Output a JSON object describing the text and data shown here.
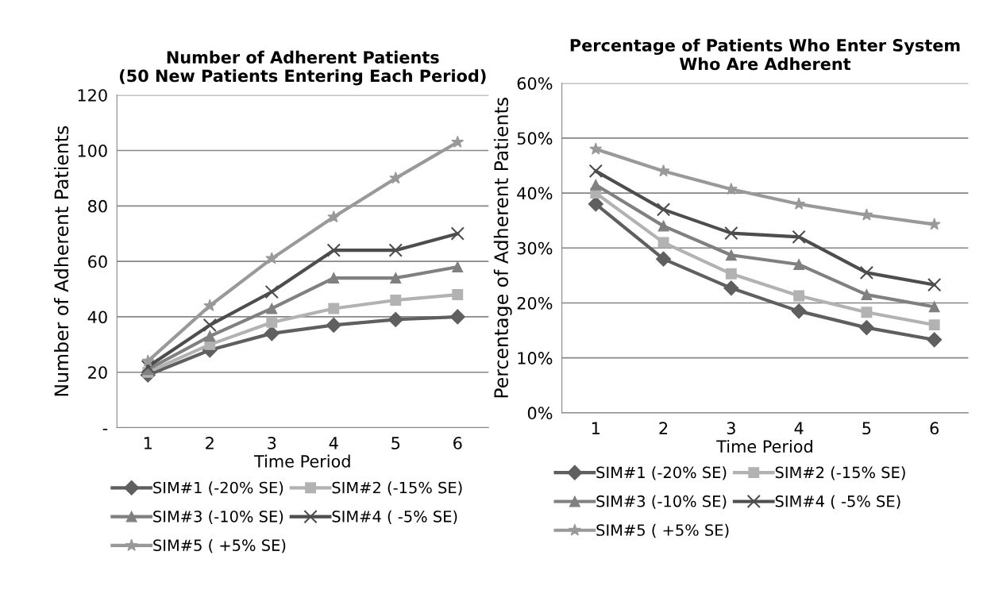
{
  "chart_data": [
    {
      "type": "line",
      "title": "Number of Adherent Patients\n(50 New Patients Entering Each Period)",
      "xlabel": "Time Period",
      "ylabel": "Number of Adherent Patients",
      "categories": [
        "1",
        "2",
        "3",
        "4",
        "5",
        "6"
      ],
      "series": [
        {
          "name": "SIM#1 (-20% SE)",
          "color": "#5f5f5f",
          "marker": "diamond",
          "values": [
            19,
            28,
            34,
            37,
            39,
            40
          ]
        },
        {
          "name": "SIM#2 (-15% SE)",
          "color": "#b2b2b2",
          "marker": "square",
          "values": [
            20,
            30,
            38,
            43,
            46,
            48
          ]
        },
        {
          "name": "SIM#3 (-10% SE)",
          "color": "#808080",
          "marker": "triangle",
          "values": [
            21,
            33,
            43,
            54,
            54,
            58
          ]
        },
        {
          "name": "SIM#4 ( -5% SE)",
          "color": "#4d4d4d",
          "marker": "cross",
          "values": [
            22,
            37,
            49,
            64,
            64,
            70
          ]
        },
        {
          "name": "SIM#5 ( +5% SE)",
          "color": "#999999",
          "marker": "star",
          "values": [
            24,
            44,
            61,
            76,
            90,
            103
          ]
        }
      ],
      "ylim": [
        0,
        120
      ],
      "yticks": [
        {
          "value": 0,
          "label": "-"
        },
        20,
        40,
        60,
        80,
        100,
        120
      ],
      "grid": "y",
      "legend": "bottom"
    },
    {
      "type": "line",
      "title": "Percentage of Patients Who Enter System\nWho Are Adherent",
      "xlabel": "Time Period",
      "ylabel": "Percentage of Adherent Patients",
      "categories": [
        "1",
        "2",
        "3",
        "4",
        "5",
        "6"
      ],
      "series": [
        {
          "name": "SIM#1 (-20% SE)",
          "color": "#5f5f5f",
          "marker": "diamond",
          "values": [
            38,
            28,
            22.7,
            18.5,
            15.5,
            13.3
          ]
        },
        {
          "name": "SIM#2 (-15% SE)",
          "color": "#b2b2b2",
          "marker": "square",
          "values": [
            40,
            31,
            25.3,
            21.3,
            18.3,
            16
          ]
        },
        {
          "name": "SIM#3 (-10% SE)",
          "color": "#808080",
          "marker": "triangle",
          "values": [
            41.5,
            34,
            28.7,
            27,
            21.5,
            19.3
          ]
        },
        {
          "name": "SIM#4 ( -5% SE)",
          "color": "#4d4d4d",
          "marker": "cross",
          "values": [
            44,
            37,
            32.7,
            32,
            25.5,
            23.3
          ]
        },
        {
          "name": "SIM#5 ( +5% SE)",
          "color": "#999999",
          "marker": "star",
          "values": [
            48,
            44,
            40.7,
            38,
            36,
            34.3
          ]
        }
      ],
      "ylim": [
        0,
        60
      ],
      "yticks": [
        {
          "value": 0,
          "label": "0%"
        },
        {
          "value": 10,
          "label": "10%"
        },
        {
          "value": 20,
          "label": "20%"
        },
        {
          "value": 30,
          "label": "30%"
        },
        {
          "value": 40,
          "label": "40%"
        },
        {
          "value": 50,
          "label": "50%"
        },
        {
          "value": 60,
          "label": "60%"
        }
      ],
      "grid": "y",
      "legend": "bottom"
    }
  ]
}
